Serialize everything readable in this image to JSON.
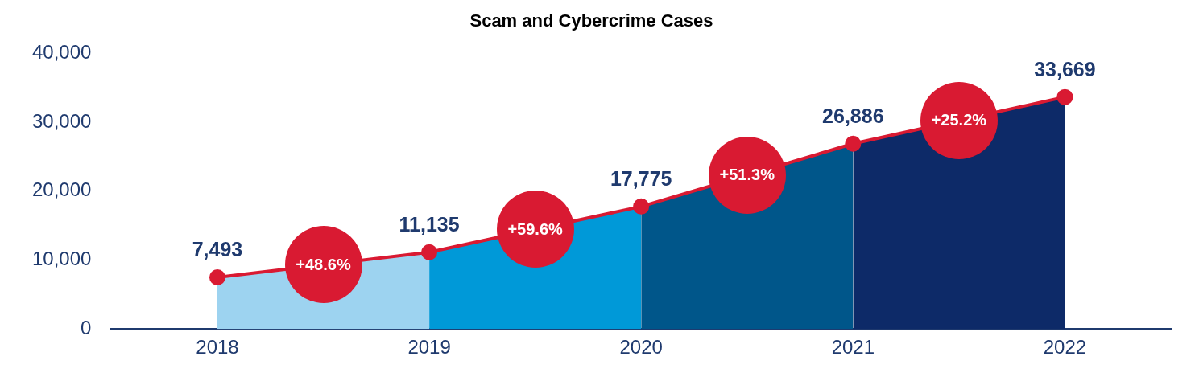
{
  "chart_data": {
    "type": "area",
    "title": "Scam and Cybercrime Cases",
    "categories": [
      "2018",
      "2019",
      "2020",
      "2021",
      "2022"
    ],
    "series": [
      {
        "type": "line",
        "marker": "circle",
        "values": [
          7493,
          11135,
          17775,
          26886,
          33669
        ],
        "color": "#d91a32",
        "value_labels": [
          "7,493",
          "11,135",
          "17,775",
          "26,886",
          "33,669"
        ]
      },
      {
        "values": [
          7493,
          11135,
          null,
          null,
          null
        ],
        "color": "#9dd3f0"
      },
      {
        "values": [
          null,
          11135,
          17775,
          null,
          null
        ],
        "color": "#0099d8"
      },
      {
        "values": [
          null,
          null,
          17775,
          26886,
          null
        ],
        "color": "#00568a"
      },
      {
        "values": [
          null,
          null,
          null,
          26886,
          33669
        ],
        "color": "#0d2a68"
      }
    ],
    "ylim": [
      0,
      40000
    ],
    "yticks": [
      0,
      {
        "value": 10000,
        "label": "10,000"
      },
      {
        "value": 20000,
        "label": "20,000"
      },
      {
        "value": 30000,
        "label": "30,000"
      },
      {
        "value": 40000,
        "label": "40,000"
      }
    ],
    "grid": false,
    "legend": false,
    "annotations": [
      "+48.6%",
      "+59.6%",
      "+51.3%",
      "+25.2%"
    ]
  }
}
